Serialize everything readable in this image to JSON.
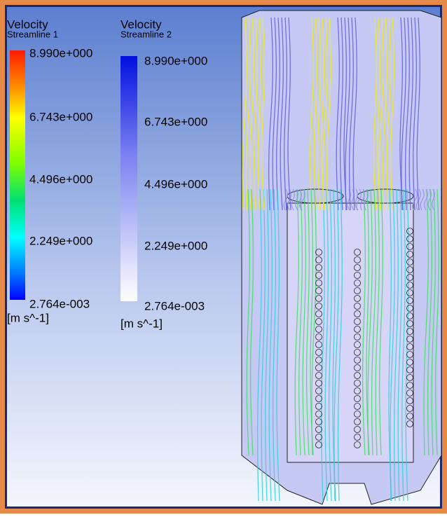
{
  "legends": [
    {
      "title": "Velocity",
      "subtitle": "Streamline 1",
      "ticks": [
        "8.990e+000",
        "6.743e+000",
        "4.496e+000",
        "2.249e+000",
        "2.764e-003"
      ],
      "units": "[m s^-1]"
    },
    {
      "title": "Velocity",
      "subtitle": "Streamline 2",
      "ticks": [
        "8.990e+000",
        "6.743e+000",
        "4.496e+000",
        "2.249e+000",
        "2.764e-003"
      ],
      "units": "[m s^-1]"
    }
  ]
}
